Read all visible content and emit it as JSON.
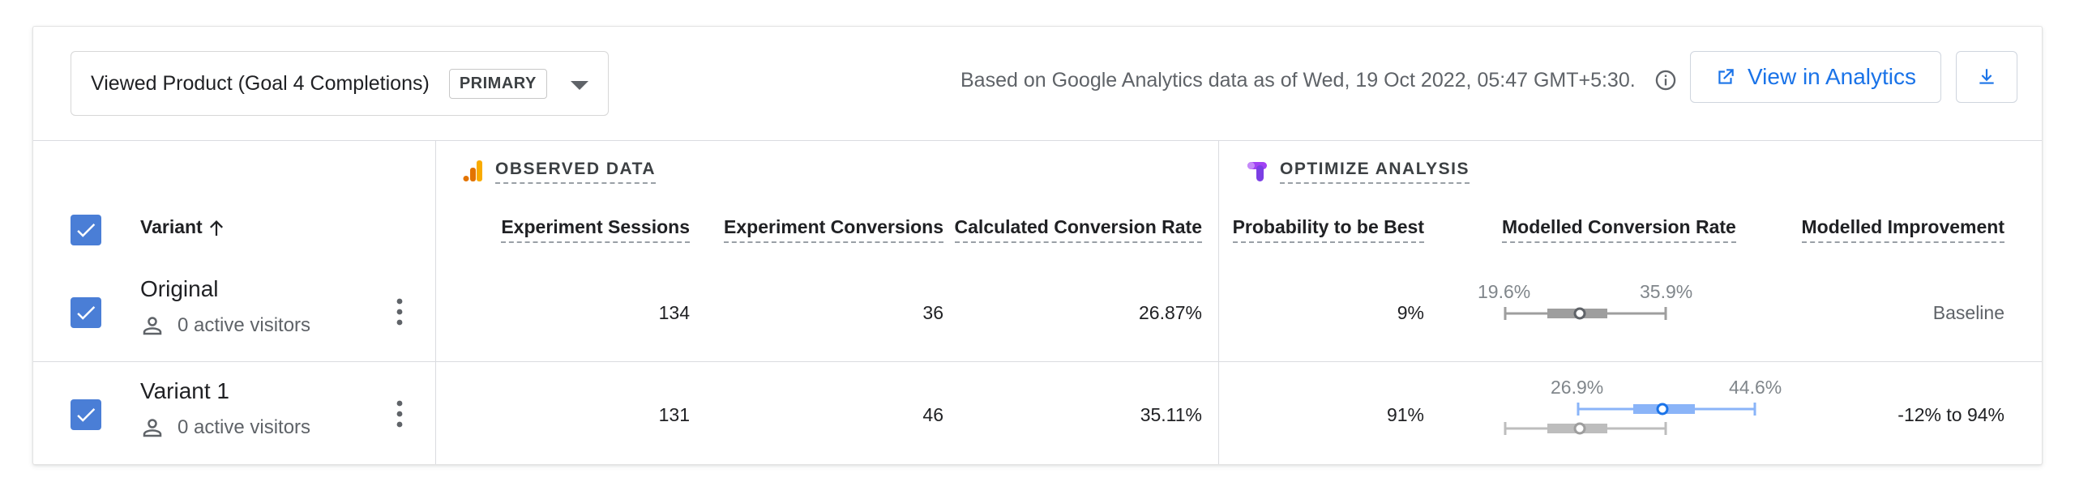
{
  "toolbar": {
    "objective_label": "Viewed Product (Goal 4 Completions)",
    "primary_badge": "PRIMARY",
    "as_of_text": "Based on Google Analytics data as of Wed, 19 Oct 2022, 05:47 GMT+5:30.",
    "view_button_label": "View in Analytics"
  },
  "sections": {
    "observed": "OBSERVED DATA",
    "optimize": "OPTIMIZE ANALYSIS"
  },
  "columns": {
    "variant": "Variant",
    "sessions": "Experiment Sessions",
    "conversions": "Experiment Conversions",
    "calc_rate": "Calculated Conversion Rate",
    "prob_best": "Probability to be Best",
    "modelled_rate": "Modelled Conversion Rate",
    "improvement": "Modelled Improvement"
  },
  "rows": [
    {
      "name": "Original",
      "visitors": "0 active visitors",
      "sessions": "134",
      "conversions": "36",
      "calc_rate": "26.87%",
      "prob_best": "9%",
      "ci_low_label": "19.6%",
      "ci_high_label": "35.9%",
      "improvement": "Baseline"
    },
    {
      "name": "Variant 1",
      "visitors": "0 active visitors",
      "sessions": "131",
      "conversions": "46",
      "calc_rate": "35.11%",
      "prob_best": "91%",
      "ci_low_label": "26.9%",
      "ci_high_label": "44.6%",
      "improvement": "-12% to 94%"
    }
  ],
  "colors": {
    "accent": "#1a73e8",
    "checkbox": "#4a7ed6",
    "baseline_bar": "#9e9e9e",
    "variant_bar": "#8ab4f8",
    "analytics_orange": "#f9ab00",
    "optimize_purple": "#a142f4"
  }
}
